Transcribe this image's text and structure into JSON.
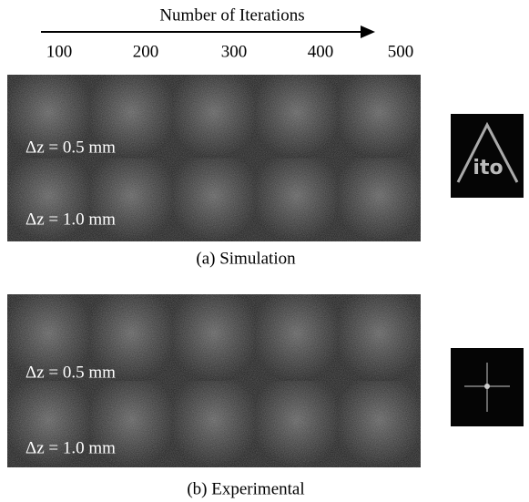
{
  "header": {
    "title": "Number of Iterations",
    "iterations": [
      "100",
      "200",
      "300",
      "400",
      "500"
    ]
  },
  "panels": [
    {
      "rows": [
        "Δz = 0.5 mm",
        "Δz = 1.0 mm"
      ],
      "caption": "(a) Simulation",
      "inset_text": "ito"
    },
    {
      "rows": [
        "Δz = 0.5 mm",
        "Δz = 1.0 mm"
      ],
      "caption": "(b) Experimental"
    }
  ]
}
